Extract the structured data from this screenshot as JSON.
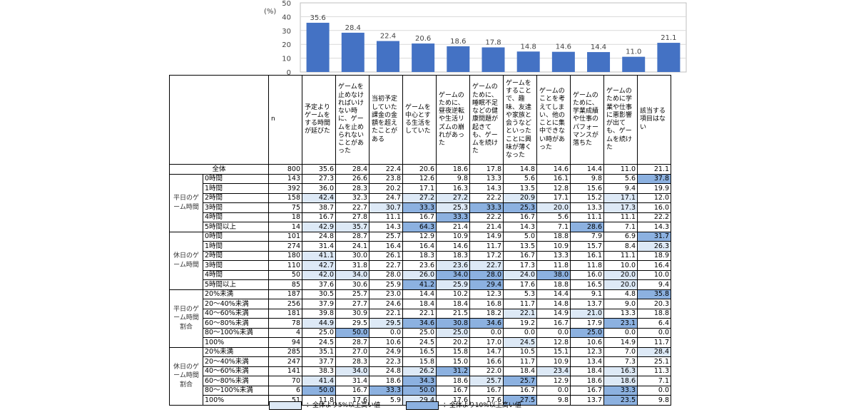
{
  "chart_data": {
    "type": "bar",
    "unit_label": "(%)",
    "ylim": [
      0,
      50
    ],
    "yticks": [
      0,
      10,
      20,
      30,
      40,
      50
    ],
    "bar_color": "#4472C4",
    "categories": [
      "予定よりゲームをする時間が延びた",
      "ゲームを止めなければいけない時に、ゲームを止められないことがあった",
      "当初予定していた課金の金額を超えたことがある",
      "ゲームを中心とする生活をしていた",
      "ゲームのために、昼夜逆転や生活リズムの崩れがあった",
      "ゲームのために、睡眠不足などの健康問題が起きても、ゲームを続けた",
      "ゲームをすることで、趣味、友達や家族と会うなどといったことに興味が薄くなった",
      "ゲームのことを考えてしまい、他のことに集中できない時があった",
      "ゲームのために、学業成績や仕事のパフォーマンスが落ちた",
      "ゲームのために学業や仕事に悪影響が出ても、ゲームを続けた",
      "該当する項目はない"
    ],
    "values": [
      35.6,
      28.4,
      22.4,
      20.6,
      18.6,
      17.8,
      14.8,
      14.6,
      14.4,
      11.0,
      21.1
    ],
    "value_labels": [
      "35.6",
      "28.4",
      "22.4",
      "20.6",
      "18.6",
      "17.8",
      "14.8",
      "14.6",
      "14.4",
      "11.0",
      "21.1"
    ]
  },
  "table": {
    "n_header": "n",
    "headers": [
      "予定よりゲームをする時間が延びた",
      "ゲームを止めなければいけない時に、ゲームを止められないことがあった",
      "当初予定していた課金の金額を超えたことがある",
      "ゲームを中心とする生活をしていた",
      "ゲームのために、昼夜逆転や生活リズムの崩れがあった",
      "ゲームのために、睡眠不足などの健康問題が起きても、ゲームを続けた",
      "ゲームをすることで、趣味、友達や家族と会うなどといったことに興味が薄くなった",
      "ゲームのことを考えてしまい、他のことに集中できない時があった",
      "ゲームのために、学業成績や仕事のパフォーマンスが落ちた",
      "ゲームのために学業や仕事に悪影響が出ても、ゲームを続けた",
      "該当する項目はない"
    ],
    "total": {
      "label": "全体",
      "n": "800",
      "values": [
        "35.6",
        "28.4",
        "22.4",
        "20.6",
        "18.6",
        "17.8",
        "14.8",
        "14.6",
        "14.4",
        "11.0",
        "21.1"
      ]
    },
    "groups": [
      {
        "label": "平日のゲーム時間",
        "rows": [
          {
            "label": "0時間",
            "n": "143",
            "values": [
              "27.3",
              "26.6",
              "23.8",
              "12.6",
              "9.8",
              "13.3",
              "5.6",
              "16.1",
              "9.8",
              "5.6",
              "37.8"
            ],
            "hl": [
              0,
              0,
              0,
              0,
              0,
              0,
              0,
              0,
              0,
              0,
              2
            ]
          },
          {
            "label": "1時間",
            "n": "392",
            "values": [
              "36.0",
              "28.3",
              "20.2",
              "17.1",
              "16.3",
              "14.3",
              "13.5",
              "12.8",
              "15.6",
              "9.4",
              "19.9"
            ],
            "hl": [
              0,
              0,
              0,
              0,
              0,
              0,
              0,
              0,
              0,
              0,
              0
            ]
          },
          {
            "label": "2時間",
            "n": "158",
            "values": [
              "42.4",
              "32.3",
              "24.7",
              "27.2",
              "27.2",
              "22.2",
              "20.9",
              "17.1",
              "15.2",
              "17.1",
              "12.0"
            ],
            "hl": [
              1,
              0,
              0,
              1,
              1,
              0,
              1,
              0,
              0,
              1,
              0
            ]
          },
          {
            "label": "3時間",
            "n": "75",
            "values": [
              "38.7",
              "22.7",
              "30.7",
              "33.3",
              "25.3",
              "33.3",
              "25.3",
              "20.0",
              "13.3",
              "17.3",
              "16.0"
            ],
            "hl": [
              0,
              0,
              1,
              2,
              1,
              2,
              2,
              1,
              0,
              1,
              0
            ]
          },
          {
            "label": "4時間",
            "n": "18",
            "values": [
              "16.7",
              "27.8",
              "11.1",
              "16.7",
              "33.3",
              "22.2",
              "16.7",
              "5.6",
              "11.1",
              "11.1",
              "22.2"
            ],
            "hl": [
              0,
              0,
              0,
              0,
              2,
              0,
              0,
              0,
              0,
              0,
              0
            ]
          },
          {
            "label": "5時間以上",
            "n": "14",
            "values": [
              "42.9",
              "35.7",
              "14.3",
              "64.3",
              "21.4",
              "21.4",
              "14.3",
              "7.1",
              "28.6",
              "7.1",
              "14.3"
            ],
            "hl": [
              1,
              1,
              0,
              2,
              0,
              0,
              0,
              0,
              2,
              0,
              0
            ]
          }
        ]
      },
      {
        "label": "休日のゲーム時間",
        "rows": [
          {
            "label": "0時間",
            "n": "101",
            "values": [
              "24.8",
              "28.7",
              "25.7",
              "12.9",
              "10.9",
              "14.9",
              "5.0",
              "18.8",
              "7.9",
              "6.9",
              "31.7"
            ],
            "hl": [
              0,
              0,
              0,
              0,
              0,
              0,
              0,
              0,
              0,
              0,
              2
            ]
          },
          {
            "label": "1時間",
            "n": "274",
            "values": [
              "31.4",
              "24.1",
              "16.4",
              "16.4",
              "14.6",
              "11.7",
              "13.5",
              "10.9",
              "15.7",
              "8.4",
              "26.3"
            ],
            "hl": [
              0,
              0,
              0,
              0,
              0,
              0,
              0,
              0,
              0,
              0,
              1
            ]
          },
          {
            "label": "2時間",
            "n": "180",
            "values": [
              "41.1",
              "30.0",
              "26.1",
              "18.3",
              "18.3",
              "17.2",
              "16.7",
              "13.3",
              "16.1",
              "11.1",
              "18.9"
            ],
            "hl": [
              1,
              0,
              0,
              0,
              0,
              0,
              0,
              0,
              0,
              0,
              0
            ]
          },
          {
            "label": "3時間",
            "n": "110",
            "values": [
              "42.7",
              "31.8",
              "22.7",
              "23.6",
              "23.6",
              "22.7",
              "17.3",
              "11.8",
              "11.8",
              "10.0",
              "16.4"
            ],
            "hl": [
              1,
              0,
              0,
              0,
              1,
              1,
              0,
              0,
              0,
              0,
              0
            ]
          },
          {
            "label": "4時間",
            "n": "50",
            "values": [
              "42.0",
              "34.0",
              "28.0",
              "26.0",
              "34.0",
              "28.0",
              "24.0",
              "38.0",
              "16.0",
              "20.0",
              "10.0"
            ],
            "hl": [
              1,
              1,
              0,
              1,
              2,
              2,
              1,
              2,
              0,
              1,
              0
            ]
          },
          {
            "label": "5時間以上",
            "n": "85",
            "values": [
              "37.6",
              "30.6",
              "25.9",
              "41.2",
              "25.9",
              "29.4",
              "17.6",
              "18.8",
              "16.5",
              "20.0",
              "9.4"
            ],
            "hl": [
              0,
              0,
              0,
              2,
              1,
              2,
              0,
              0,
              0,
              1,
              0
            ]
          }
        ]
      },
      {
        "label": "平日のゲーム時間割合",
        "rows": [
          {
            "label": "20%未満",
            "n": "187",
            "values": [
              "30.5",
              "25.7",
              "23.0",
              "14.4",
              "10.2",
              "12.3",
              "5.3",
              "14.4",
              "9.1",
              "4.8",
              "35.8"
            ],
            "hl": [
              0,
              0,
              0,
              0,
              0,
              0,
              0,
              0,
              0,
              0,
              2
            ]
          },
          {
            "label": "20～40%未満",
            "n": "256",
            "values": [
              "37.9",
              "27.7",
              "24.6",
              "18.4",
              "18.4",
              "16.8",
              "11.7",
              "14.8",
              "13.7",
              "9.0",
              "20.3"
            ],
            "hl": [
              0,
              0,
              0,
              0,
              0,
              0,
              0,
              0,
              0,
              0,
              0
            ]
          },
          {
            "label": "40～60%未満",
            "n": "181",
            "values": [
              "39.8",
              "30.9",
              "22.1",
              "22.1",
              "21.5",
              "18.2",
              "22.1",
              "14.9",
              "21.0",
              "13.3",
              "18.8"
            ],
            "hl": [
              0,
              0,
              0,
              0,
              0,
              0,
              1,
              0,
              1,
              0,
              0
            ]
          },
          {
            "label": "60～80%未満",
            "n": "78",
            "values": [
              "44.9",
              "29.5",
              "29.5",
              "34.6",
              "30.8",
              "34.6",
              "19.2",
              "16.7",
              "17.9",
              "23.1",
              "6.4"
            ],
            "hl": [
              1,
              0,
              1,
              2,
              2,
              2,
              0,
              0,
              0,
              2,
              0
            ]
          },
          {
            "label": "80～100%未満",
            "n": "4",
            "values": [
              "25.0",
              "50.0",
              "0.0",
              "25.0",
              "25.0",
              "0.0",
              "0.0",
              "0.0",
              "25.0",
              "0.0",
              "0.0"
            ],
            "hl": [
              0,
              2,
              0,
              0,
              1,
              0,
              0,
              0,
              2,
              0,
              0
            ]
          },
          {
            "label": "100%",
            "n": "94",
            "values": [
              "24.5",
              "28.7",
              "10.6",
              "24.5",
              "20.2",
              "17.0",
              "24.5",
              "12.8",
              "10.6",
              "14.9",
              "11.7"
            ],
            "hl": [
              0,
              0,
              0,
              0,
              0,
              0,
              1,
              0,
              0,
              0,
              0
            ]
          }
        ]
      },
      {
        "label": "休日のゲーム時間割合",
        "rows": [
          {
            "label": "20%未満",
            "n": "285",
            "values": [
              "35.1",
              "27.0",
              "24.9",
              "16.5",
              "15.8",
              "14.7",
              "10.5",
              "15.1",
              "12.3",
              "7.0",
              "28.4"
            ],
            "hl": [
              0,
              0,
              0,
              0,
              0,
              0,
              0,
              0,
              0,
              0,
              1
            ]
          },
          {
            "label": "20～40%未満",
            "n": "247",
            "values": [
              "37.7",
              "28.3",
              "22.3",
              "15.8",
              "15.0",
              "16.6",
              "11.7",
              "10.9",
              "13.4",
              "7.3",
              "25.1"
            ],
            "hl": [
              0,
              0,
              0,
              0,
              0,
              0,
              0,
              0,
              0,
              0,
              0
            ]
          },
          {
            "label": "40～60%未満",
            "n": "141",
            "values": [
              "38.3",
              "34.0",
              "24.8",
              "26.2",
              "31.2",
              "22.0",
              "18.4",
              "23.4",
              "18.4",
              "16.3",
              "11.3"
            ],
            "hl": [
              0,
              1,
              0,
              1,
              2,
              0,
              0,
              1,
              0,
              1,
              0
            ]
          },
          {
            "label": "60～80%未満",
            "n": "70",
            "values": [
              "41.4",
              "31.4",
              "18.6",
              "34.3",
              "18.6",
              "25.7",
              "25.7",
              "12.9",
              "18.6",
              "18.6",
              "7.1"
            ],
            "hl": [
              1,
              0,
              0,
              2,
              0,
              1,
              2,
              0,
              0,
              1,
              0
            ]
          },
          {
            "label": "80～100%未満",
            "n": "6",
            "values": [
              "50.0",
              "16.7",
              "33.3",
              "50.0",
              "16.7",
              "16.7",
              "16.7",
              "0.0",
              "16.7",
              "33.3",
              "0.0"
            ],
            "hl": [
              2,
              0,
              2,
              2,
              0,
              0,
              0,
              0,
              0,
              2,
              0
            ]
          },
          {
            "label": "100%",
            "n": "51",
            "values": [
              "11.8",
              "17.6",
              "5.9",
              "29.4",
              "17.6",
              "17.6",
              "27.5",
              "9.8",
              "13.7",
              "23.5",
              "9.8"
            ],
            "hl": [
              0,
              0,
              0,
              1,
              0,
              0,
              2,
              0,
              0,
              2,
              0
            ]
          }
        ]
      }
    ]
  },
  "legend": {
    "light_label": "：全体より5%以上高い値",
    "dark_label": "：全体より10%以上高い値",
    "light_color": "#dde9f6",
    "dark_color": "#8cb1e0"
  }
}
